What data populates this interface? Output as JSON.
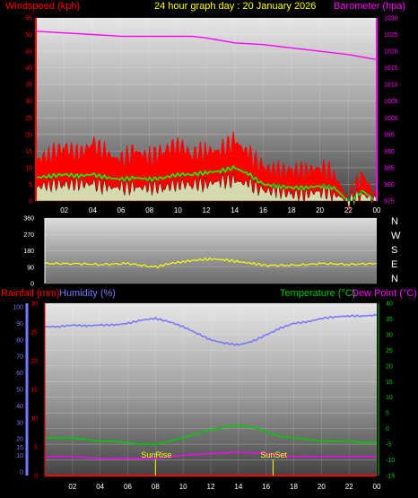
{
  "header": {
    "windspeed_label": "Windspeed (kph)",
    "title": "24 hour graph day : 20 January 2026",
    "barometer_label": "Barometer (hpa)"
  },
  "mid": {
    "dir_labels": [
      "N",
      "W",
      "S",
      "E",
      "N"
    ]
  },
  "lower_header": {
    "rainfall_label": "Rainfall (mm)",
    "humidity_label": "Humidity (%)",
    "temperature_label": "Temperature (°C)",
    "dewpoint_label": "Dew Point (°C)"
  },
  "annotations": {
    "sunrise": "SunRise",
    "sunset": "SunSet"
  },
  "colors": {
    "wind": "#ff0000",
    "wind_avg": "#00ff00",
    "wind_low": "#ccffcc",
    "barometer": "#ff00ff",
    "direction": "#ffff00",
    "humidity": "#7777ff",
    "temperature": "#00cc00",
    "dewpoint": "#ff00ff",
    "rainfall": "#ff0000",
    "sun_marker": "#ffff00"
  },
  "chart_data": [
    {
      "type": "line",
      "name": "wind-barometer",
      "x_ticks": [
        "02",
        "04",
        "06",
        "08",
        "10",
        "12",
        "14",
        "16",
        "18",
        "20",
        "22",
        "00"
      ],
      "y_left_ticks": [
        "0",
        "5",
        "10",
        "15",
        "20",
        "25",
        "30",
        "35",
        "40",
        "45",
        "50",
        "55"
      ],
      "y_left_range": [
        0,
        55
      ],
      "y_right_ticks": [
        "975",
        "980",
        "985",
        "990",
        "995",
        "1000",
        "1005",
        "1010",
        "1015",
        "1020",
        "1025",
        "1030"
      ],
      "y_right_range": [
        975,
        1030
      ],
      "x_range": [
        0,
        24
      ],
      "series": [
        {
          "key": "barometer",
          "axis": "right",
          "x": [
            0,
            2,
            4,
            6,
            8,
            10,
            11,
            12,
            14,
            16,
            18,
            20,
            22,
            24
          ],
          "values": [
            1026,
            1025.5,
            1025,
            1024.5,
            1024.5,
            1024.5,
            1024.5,
            1024,
            1022.5,
            1022,
            1021,
            1020,
            1019,
            1017.5
          ]
        },
        {
          "key": "wind",
          "axis": "left",
          "x": [
            0,
            1,
            2,
            3,
            4,
            5,
            6,
            7,
            8,
            9,
            10,
            11,
            12,
            13,
            14,
            15,
            16,
            17,
            18,
            19,
            20,
            21,
            22,
            23,
            24
          ],
          "values": [
            12,
            14,
            16,
            14,
            17,
            14,
            12,
            15,
            13,
            15,
            17,
            14,
            15,
            15,
            18,
            14,
            10,
            9,
            9,
            9,
            10,
            8,
            0,
            8,
            0
          ]
        },
        {
          "key": "wind_avg",
          "axis": "left",
          "x": [
            0,
            1,
            2,
            3,
            4,
            5,
            6,
            7,
            8,
            9,
            10,
            11,
            12,
            13,
            14,
            15,
            16,
            17,
            18,
            19,
            20,
            21,
            22,
            23,
            24
          ],
          "values": [
            7,
            7.5,
            8,
            7.5,
            8,
            7,
            6.5,
            7,
            6.5,
            7,
            8,
            8,
            8.5,
            9,
            10,
            8,
            5,
            4.5,
            4,
            4,
            4.5,
            4,
            0,
            3,
            0
          ]
        },
        {
          "key": "wind_low",
          "axis": "left",
          "x": [
            0,
            1,
            2,
            3,
            4,
            5,
            6,
            7,
            8,
            9,
            10,
            11,
            12,
            13,
            14,
            15,
            16,
            17,
            18,
            19,
            20,
            21,
            22,
            23,
            24
          ],
          "values": [
            4,
            5,
            5,
            5,
            5,
            4,
            4,
            4,
            4,
            4,
            5,
            5,
            5,
            6,
            6,
            5,
            3,
            3,
            2,
            2,
            3,
            2,
            0,
            2,
            0
          ]
        }
      ]
    },
    {
      "type": "line",
      "name": "wind-direction",
      "y_ticks": [
        "0",
        "90",
        "180",
        "270",
        "360"
      ],
      "y_range": [
        0,
        360
      ],
      "x_range": [
        0,
        24
      ],
      "series": [
        {
          "key": "direction",
          "x": [
            0,
            2,
            4,
            6,
            8,
            9,
            10,
            11,
            12,
            13,
            14,
            15,
            16,
            18,
            20,
            22,
            24
          ],
          "values": [
            110,
            110,
            105,
            110,
            90,
            110,
            120,
            130,
            135,
            130,
            120,
            110,
            100,
            100,
            110,
            105,
            110
          ]
        }
      ]
    },
    {
      "type": "line",
      "name": "temp-humidity-rain",
      "x_ticks": [
        "02",
        "04",
        "06",
        "08",
        "10",
        "12",
        "14",
        "16",
        "18",
        "20",
        "22",
        "00"
      ],
      "x_range": [
        0,
        24
      ],
      "y_humidity_ticks": [
        "0",
        "10",
        "15",
        "20",
        "30",
        "40",
        "50",
        "60",
        "70",
        "80",
        "90",
        "100"
      ],
      "y_rain_ticks": [
        "0",
        "5",
        "10",
        "15",
        "20",
        "25",
        "30"
      ],
      "y_rain_range": [
        0,
        30
      ],
      "y_temp_ticks": [
        "-15",
        "-10",
        "-5",
        "0",
        "5",
        "10",
        "15",
        "20",
        "25",
        "30",
        "35",
        "40"
      ],
      "y_temp_range": [
        -15,
        40
      ],
      "sunrise_x": 8,
      "sunset_x": 16.5,
      "series": [
        {
          "key": "humidity",
          "x": [
            0,
            1,
            2,
            3,
            4,
            5,
            6,
            7,
            8,
            9,
            10,
            11,
            12,
            13,
            14,
            15,
            16,
            17,
            18,
            19,
            20,
            21,
            22,
            23,
            24
          ],
          "values": [
            88,
            88,
            89,
            88.5,
            89,
            89,
            90,
            92,
            93,
            91,
            88,
            84,
            80,
            78,
            77,
            79,
            83,
            87,
            90,
            91,
            93,
            94,
            94.5,
            94.5,
            95
          ]
        },
        {
          "key": "temperature",
          "x": [
            0,
            1,
            2,
            3,
            4,
            5,
            6,
            7,
            8,
            9,
            10,
            11,
            12,
            13,
            14,
            15,
            16,
            17,
            18,
            19,
            20,
            21,
            22,
            23,
            24
          ],
          "values": [
            -3,
            -3,
            -3,
            -3.5,
            -4,
            -4,
            -4.5,
            -5,
            -5,
            -4,
            -3,
            -1.5,
            -0.5,
            0.5,
            1,
            0.5,
            -1,
            -2.5,
            -3,
            -3.5,
            -4,
            -4,
            -4,
            -4.5,
            -4.5
          ]
        },
        {
          "key": "dewpoint",
          "x": [
            0,
            2,
            4,
            6,
            8,
            10,
            12,
            14,
            16,
            18,
            20,
            22,
            24
          ],
          "values": [
            -9,
            -9,
            -9.5,
            -9.5,
            -9.5,
            -8.5,
            -8,
            -7.5,
            -8,
            -9,
            -9,
            -9,
            -9
          ]
        },
        {
          "key": "rainfall",
          "x": [
            0,
            24
          ],
          "values": [
            0,
            0
          ]
        }
      ]
    }
  ]
}
